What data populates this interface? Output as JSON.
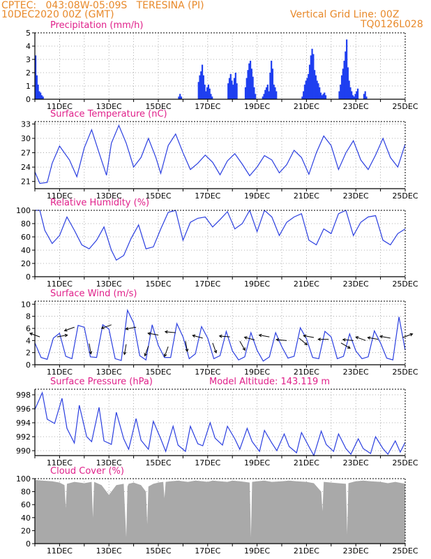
{
  "header": {
    "line1": "CPTEC:   043:08W-05:09S   TERESINA (PI)",
    "line2": "10DEC2020 00Z (GMT)",
    "grid_note": "Vertical Grid Line: 00Z",
    "run_id": "TQ0126L028"
  },
  "x_axis": {
    "start_day": 10,
    "end_day": 25,
    "labels": [
      {
        "day": 11,
        "label": "11DEC"
      },
      {
        "day": 13,
        "label": "13DEC"
      },
      {
        "day": 15,
        "label": "15DEC"
      },
      {
        "day": 17,
        "label": "17DEC"
      },
      {
        "day": 19,
        "label": "19DEC"
      },
      {
        "day": 21,
        "label": "21DEC"
      },
      {
        "day": 23,
        "label": "23DEC"
      },
      {
        "day": 25,
        "label": "25DEC"
      }
    ]
  },
  "colors": {
    "header": "#e8892a",
    "title": "#e0208a",
    "line": "#2b3fe0",
    "precip": "#1f3ff0",
    "cloud": "#a9a9a9",
    "arrow": "#000000"
  },
  "chart_data": [
    {
      "type": "bar",
      "title": "Precipitation (mm/h)",
      "ylim": [
        0,
        5
      ],
      "yticks": [
        0,
        1,
        2,
        3,
        4,
        5
      ],
      "x": [
        10.0,
        10.05,
        10.1,
        10.15,
        10.2,
        10.25,
        10.3,
        15.8,
        15.85,
        15.9,
        16.6,
        16.65,
        16.7,
        16.75,
        16.8,
        16.85,
        16.9,
        16.95,
        17.0,
        17.05,
        17.1,
        17.15,
        17.8,
        17.85,
        17.9,
        17.95,
        18.0,
        18.05,
        18.1,
        18.15,
        18.5,
        18.55,
        18.6,
        18.65,
        18.7,
        18.75,
        18.8,
        18.85,
        18.9,
        19.2,
        19.25,
        19.3,
        19.35,
        19.4,
        19.45,
        19.5,
        19.55,
        19.6,
        19.65,
        19.7,
        19.75,
        20.8,
        20.85,
        20.9,
        20.95,
        21.0,
        21.05,
        21.1,
        21.15,
        21.2,
        21.25,
        21.3,
        21.35,
        21.4,
        21.45,
        21.5,
        21.55,
        21.6,
        21.65,
        21.7,
        21.75,
        22.3,
        22.35,
        22.4,
        22.45,
        22.5,
        22.55,
        22.6,
        22.65,
        22.7,
        22.75,
        22.8,
        22.85,
        22.9,
        22.95,
        23.0,
        23.05,
        23.3,
        23.35,
        23.4
      ],
      "values": [
        3.3,
        1.8,
        1.1,
        0.6,
        0.5,
        0.3,
        0.2,
        0.2,
        0.4,
        0.2,
        1.3,
        1.8,
        2.1,
        2.6,
        1.8,
        1.1,
        0.6,
        0.9,
        1.1,
        0.8,
        0.4,
        0.2,
        1.2,
        1.6,
        1.9,
        1.4,
        1.1,
        1.6,
        2.0,
        1.2,
        0.9,
        1.6,
        2.2,
        2.7,
        2.9,
        2.3,
        1.7,
        0.9,
        0.4,
        0.2,
        0.4,
        0.7,
        0.9,
        1.1,
        0.6,
        2.0,
        2.9,
        2.3,
        1.1,
        0.9,
        0.6,
        0.2,
        0.6,
        1.1,
        1.4,
        1.6,
        1.9,
        2.6,
        3.3,
        3.8,
        3.4,
        2.2,
        1.8,
        1.4,
        1.2,
        0.9,
        0.5,
        0.3,
        0.4,
        0.5,
        0.3,
        0.6,
        1.1,
        1.8,
        2.3,
        2.9,
        3.6,
        4.5,
        2.4,
        1.4,
        0.9,
        0.6,
        0.3,
        0.2,
        0.4,
        0.6,
        0.8,
        0.4,
        0.6,
        0.2
      ]
    },
    {
      "type": "line",
      "title": "Surface Temperature (nC)",
      "ylim": [
        19.5,
        33.5
      ],
      "yticks": [
        21,
        24,
        27,
        30,
        33
      ],
      "x": [
        10.0,
        10.2,
        10.5,
        10.7,
        11.0,
        11.4,
        11.7,
        12.0,
        12.3,
        12.6,
        12.9,
        13.1,
        13.4,
        13.7,
        14.0,
        14.3,
        14.6,
        14.9,
        15.1,
        15.4,
        15.7,
        16.0,
        16.3,
        16.6,
        16.9,
        17.2,
        17.5,
        17.8,
        18.1,
        18.4,
        18.7,
        19.0,
        19.3,
        19.6,
        19.9,
        20.2,
        20.5,
        20.8,
        21.1,
        21.4,
        21.7,
        22.0,
        22.3,
        22.6,
        22.9,
        23.2,
        23.5,
        23.8,
        24.1,
        24.4,
        24.7,
        25.0
      ],
      "values": [
        23.0,
        20.6,
        20.8,
        24.8,
        28.4,
        25.5,
        22.0,
        28.0,
        31.8,
        27.0,
        22.3,
        29.0,
        32.7,
        29.0,
        24.0,
        26.0,
        30.0,
        26.0,
        22.7,
        28.5,
        30.9,
        27.0,
        23.5,
        24.8,
        26.5,
        25.0,
        22.4,
        25.3,
        26.8,
        24.6,
        22.2,
        24.0,
        26.4,
        25.5,
        22.8,
        24.5,
        27.5,
        26.0,
        22.5,
        27.0,
        30.5,
        28.5,
        23.5,
        27.0,
        29.5,
        25.5,
        23.5,
        26.5,
        30.0,
        26.0,
        24.0,
        28.8
      ]
    },
    {
      "type": "line",
      "title": "Relative Humidity (%)",
      "ylim": [
        0,
        100
      ],
      "yticks": [
        0,
        20,
        40,
        60,
        80,
        100
      ],
      "x": [
        10.0,
        10.2,
        10.4,
        10.7,
        11.0,
        11.3,
        11.6,
        11.9,
        12.2,
        12.5,
        12.8,
        13.1,
        13.3,
        13.6,
        13.9,
        14.2,
        14.5,
        14.8,
        15.1,
        15.4,
        15.7,
        16.0,
        16.3,
        16.6,
        16.9,
        17.2,
        17.5,
        17.8,
        18.1,
        18.4,
        18.7,
        19.0,
        19.3,
        19.6,
        19.9,
        20.2,
        20.5,
        20.8,
        21.1,
        21.4,
        21.7,
        22.0,
        22.3,
        22.6,
        22.9,
        23.2,
        23.5,
        23.8,
        24.1,
        24.4,
        24.7,
        25.0
      ],
      "values": [
        100,
        100,
        70,
        50,
        62,
        90,
        70,
        48,
        42,
        55,
        75,
        40,
        25,
        32,
        58,
        78,
        42,
        45,
        72,
        97,
        100,
        55,
        82,
        88,
        90,
        75,
        86,
        98,
        72,
        80,
        100,
        68,
        100,
        90,
        62,
        82,
        90,
        95,
        55,
        48,
        72,
        65,
        95,
        100,
        62,
        82,
        90,
        92,
        55,
        48,
        65,
        72
      ]
    },
    {
      "type": "line",
      "title": "Surface Wind (m/s)",
      "ylim": [
        0,
        10.5
      ],
      "yticks": [
        0,
        2,
        4,
        6,
        8,
        10
      ],
      "x": [
        10.0,
        10.25,
        10.5,
        10.75,
        11.0,
        11.25,
        11.5,
        11.75,
        12.0,
        12.25,
        12.5,
        12.75,
        13.0,
        13.25,
        13.5,
        13.75,
        14.0,
        14.25,
        14.5,
        14.75,
        15.0,
        15.25,
        15.5,
        15.75,
        16.0,
        16.25,
        16.5,
        16.75,
        17.0,
        17.25,
        17.5,
        17.75,
        18.0,
        18.25,
        18.5,
        18.75,
        19.0,
        19.25,
        19.5,
        19.75,
        20.0,
        20.25,
        20.5,
        20.75,
        21.0,
        21.25,
        21.5,
        21.75,
        22.0,
        22.25,
        22.5,
        22.75,
        23.0,
        23.25,
        23.5,
        23.75,
        24.0,
        24.25,
        24.5,
        24.75,
        25.0
      ],
      "values": [
        3.6,
        1.2,
        0.9,
        4.4,
        5.2,
        1.4,
        1.0,
        6.5,
        6.2,
        1.3,
        1.2,
        6.6,
        5.9,
        1.0,
        0.7,
        9.0,
        6.9,
        1.5,
        0.8,
        6.6,
        3.2,
        1.2,
        1.2,
        6.8,
        4.6,
        1.0,
        1.8,
        6.3,
        4.4,
        1.0,
        1.5,
        5.5,
        2.3,
        0.8,
        1.3,
        5.3,
        2.4,
        0.6,
        1.3,
        5.3,
        3.0,
        1.1,
        1.4,
        6.1,
        4.3,
        1.2,
        1.0,
        5.5,
        4.6,
        1.0,
        1.4,
        5.1,
        2.3,
        1.0,
        1.3,
        5.6,
        3.6,
        1.1,
        0.8,
        7.9,
        2.4
      ]
    },
    {
      "type": "line",
      "title": "Surface Pressure (hPa)",
      "annotation": "Model Altitude: 143.119 m",
      "ylim": [
        989.3,
        998.8
      ],
      "yticks": [
        990,
        992,
        994,
        996,
        998
      ],
      "x": [
        10.0,
        10.3,
        10.5,
        10.8,
        11.1,
        11.3,
        11.6,
        11.8,
        12.1,
        12.3,
        12.6,
        12.8,
        13.1,
        13.3,
        13.6,
        13.8,
        14.1,
        14.3,
        14.6,
        14.8,
        15.1,
        15.3,
        15.6,
        15.8,
        16.1,
        16.3,
        16.6,
        16.8,
        17.1,
        17.3,
        17.6,
        17.8,
        18.1,
        18.3,
        18.6,
        18.8,
        19.1,
        19.3,
        19.6,
        19.8,
        20.1,
        20.3,
        20.6,
        20.8,
        21.1,
        21.3,
        21.6,
        21.8,
        22.1,
        22.3,
        22.6,
        22.8,
        23.1,
        23.3,
        23.6,
        23.8,
        24.1,
        24.3,
        24.6,
        24.8,
        25.0
      ],
      "values": [
        995.9,
        998.3,
        994.5,
        993.9,
        997.5,
        993.2,
        991.1,
        996.5,
        992.0,
        991.3,
        996.2,
        991.4,
        990.9,
        995.5,
        991.7,
        990.2,
        994.6,
        991.5,
        990.2,
        994.2,
        991.7,
        989.9,
        993.5,
        990.8,
        989.9,
        993.5,
        991.0,
        990.7,
        994.0,
        991.8,
        990.8,
        993.5,
        991.7,
        990.2,
        993.2,
        991.3,
        989.9,
        992.9,
        991.1,
        990.0,
        992.4,
        990.6,
        989.7,
        992.6,
        990.6,
        989.3,
        992.8,
        990.9,
        989.9,
        992.4,
        990.3,
        989.5,
        991.7,
        990.3,
        989.6,
        992.0,
        990.3,
        989.5,
        991.4,
        989.8,
        991.2
      ]
    },
    {
      "type": "area",
      "title": "Cloud Cover (%)",
      "ylim": [
        0,
        100
      ],
      "yticks": [
        0,
        20,
        40,
        60,
        80,
        100
      ],
      "x": [
        10.0,
        10.3,
        10.7,
        11.0,
        11.2,
        11.25,
        11.3,
        11.6,
        12.0,
        12.3,
        12.35,
        12.4,
        12.7,
        13.0,
        13.3,
        13.6,
        13.7,
        13.75,
        13.8,
        14.0,
        14.3,
        14.5,
        14.55,
        14.6,
        14.8,
        15.0,
        15.2,
        15.25,
        15.3,
        15.5,
        15.8,
        16.0,
        16.2,
        16.5,
        16.8,
        17.0,
        17.2,
        17.5,
        17.8,
        18.0,
        18.3,
        18.5,
        18.7,
        18.75,
        18.8,
        19.0,
        19.3,
        19.6,
        20.0,
        20.3,
        20.6,
        21.0,
        21.3,
        21.6,
        21.65,
        21.7,
        22.0,
        22.3,
        22.6,
        22.65,
        22.7,
        23.0,
        23.3,
        23.6,
        24.0,
        24.3,
        24.6,
        25.0
      ],
      "values": [
        98,
        97,
        96,
        94,
        90,
        55,
        92,
        95,
        93,
        95,
        40,
        95,
        90,
        75,
        90,
        92,
        10,
        88,
        92,
        94,
        90,
        80,
        30,
        88,
        92,
        94,
        95,
        70,
        95,
        96,
        97,
        96,
        95,
        97,
        96,
        95,
        97,
        96,
        95,
        97,
        96,
        95,
        94,
        10,
        95,
        96,
        97,
        95,
        96,
        97,
        96,
        95,
        93,
        80,
        50,
        95,
        94,
        93,
        92,
        15,
        93,
        96,
        97,
        96,
        95,
        93,
        95,
        92
      ]
    }
  ],
  "wind_arrows": {
    "note": "direction = degrees the arrow points to (0 = east, counter-clockwise positive)",
    "items": [
      {
        "x": 10.2,
        "value": 4.6,
        "dir": 160
      },
      {
        "x": 10.9,
        "value": 4.6,
        "dir": 10
      },
      {
        "x": 11.6,
        "value": 6.2,
        "dir": -160
      },
      {
        "x": 12.2,
        "value": 3.5,
        "dir": -80
      },
      {
        "x": 13.1,
        "value": 6.6,
        "dir": -160
      },
      {
        "x": 13.7,
        "value": 3.4,
        "dir": -100
      },
      {
        "x": 14.1,
        "value": 6.2,
        "dir": -170
      },
      {
        "x": 14.6,
        "value": 3.1,
        "dir": -110
      },
      {
        "x": 15.0,
        "value": 4.9,
        "dir": 170
      },
      {
        "x": 15.4,
        "value": 3.0,
        "dir": -110
      },
      {
        "x": 15.7,
        "value": 5.3,
        "dir": 175
      },
      {
        "x": 16.1,
        "value": 3.9,
        "dir": -80
      },
      {
        "x": 16.8,
        "value": 4.4,
        "dir": 165
      },
      {
        "x": 17.2,
        "value": 3.6,
        "dir": -70
      },
      {
        "x": 17.9,
        "value": 4.6,
        "dir": 175
      },
      {
        "x": 18.3,
        "value": 3.9,
        "dir": -60
      },
      {
        "x": 18.9,
        "value": 4.1,
        "dir": 165
      },
      {
        "x": 19.5,
        "value": 4.6,
        "dir": 170
      },
      {
        "x": 20.2,
        "value": 4.0,
        "dir": 175
      },
      {
        "x": 20.7,
        "value": 4.4,
        "dir": -40
      },
      {
        "x": 21.3,
        "value": 4.5,
        "dir": 170
      },
      {
        "x": 21.9,
        "value": 4.2,
        "dir": 180
      },
      {
        "x": 22.4,
        "value": 3.6,
        "dir": -30
      },
      {
        "x": 22.9,
        "value": 4.0,
        "dir": 175
      },
      {
        "x": 23.4,
        "value": 4.0,
        "dir": 160
      },
      {
        "x": 23.9,
        "value": 4.2,
        "dir": 170
      },
      {
        "x": 24.4,
        "value": 4.4,
        "dir": 170
      },
      {
        "x": 24.9,
        "value": 4.5,
        "dir": 20
      }
    ]
  }
}
